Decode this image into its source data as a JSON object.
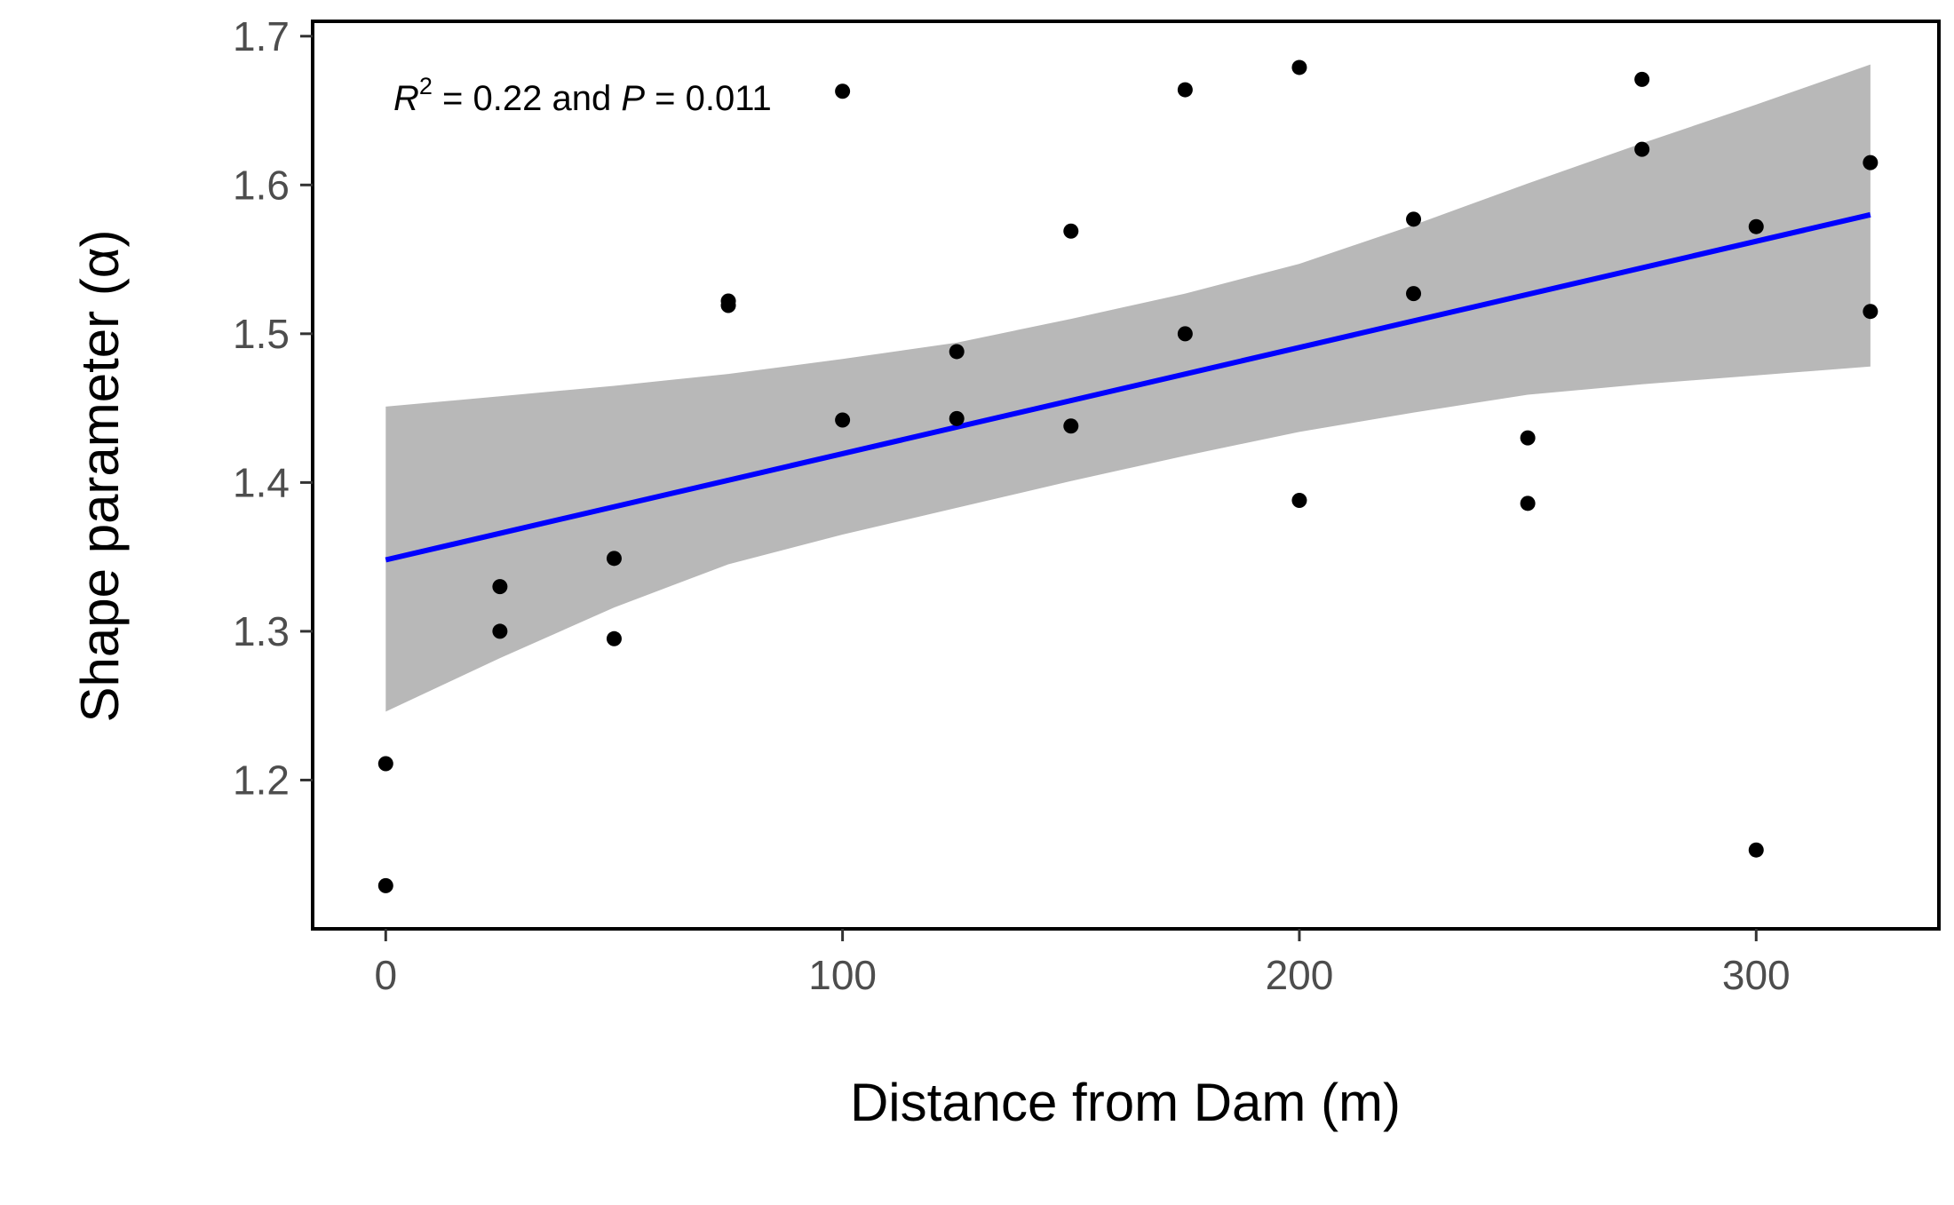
{
  "chart_data": {
    "type": "scatter",
    "xlabel": "Distance from Dam (m)",
    "ylabel": "Shape parameter (α)",
    "xlim": [
      -16,
      340
    ],
    "ylim": [
      1.1,
      1.71
    ],
    "x_ticks": [
      0,
      100,
      200,
      300
    ],
    "x_tick_labels": [
      "0",
      "100",
      "200",
      "300"
    ],
    "y_ticks": [
      1.2,
      1.3,
      1.4,
      1.5,
      1.6,
      1.7
    ],
    "y_tick_labels": [
      "1.2",
      "1.3",
      "1.4",
      "1.5",
      "1.6",
      "1.7"
    ],
    "grid": false,
    "annotation": {
      "r_symbol": "R",
      "r_exponent": "2",
      "r_value_text": " = 0.22 and ",
      "p_symbol": "P",
      "p_value_text": " = 0.011"
    },
    "points": [
      {
        "x": 0,
        "y": 1.211
      },
      {
        "x": 0,
        "y": 1.129
      },
      {
        "x": 25,
        "y": 1.33
      },
      {
        "x": 25,
        "y": 1.3
      },
      {
        "x": 50,
        "y": 1.349
      },
      {
        "x": 50,
        "y": 1.295
      },
      {
        "x": 75,
        "y": 1.522
      },
      {
        "x": 75,
        "y": 1.519
      },
      {
        "x": 100,
        "y": 1.663
      },
      {
        "x": 100,
        "y": 1.442
      },
      {
        "x": 125,
        "y": 1.488
      },
      {
        "x": 125,
        "y": 1.443
      },
      {
        "x": 150,
        "y": 1.569
      },
      {
        "x": 150,
        "y": 1.438
      },
      {
        "x": 175,
        "y": 1.664
      },
      {
        "x": 175,
        "y": 1.5
      },
      {
        "x": 200,
        "y": 1.679
      },
      {
        "x": 200,
        "y": 1.388
      },
      {
        "x": 225,
        "y": 1.577
      },
      {
        "x": 225,
        "y": 1.527
      },
      {
        "x": 250,
        "y": 1.43
      },
      {
        "x": 250,
        "y": 1.386
      },
      {
        "x": 275,
        "y": 1.671
      },
      {
        "x": 275,
        "y": 1.624
      },
      {
        "x": 300,
        "y": 1.572
      },
      {
        "x": 300,
        "y": 1.153
      },
      {
        "x": 325,
        "y": 1.615
      },
      {
        "x": 325,
        "y": 1.515
      }
    ],
    "fit_line": {
      "x": [
        0,
        325
      ],
      "y": [
        1.348,
        1.58
      ],
      "color": "#0000ff"
    },
    "confidence_band": {
      "color": "#b8b8b8",
      "x": [
        0,
        25,
        50,
        75,
        100,
        125,
        150,
        175,
        200,
        225,
        250,
        275,
        300,
        325
      ],
      "lower": [
        1.246,
        1.282,
        1.316,
        1.345,
        1.365,
        1.383,
        1.401,
        1.418,
        1.434,
        1.447,
        1.459,
        1.466,
        1.472,
        1.478
      ],
      "upper": [
        1.451,
        1.458,
        1.465,
        1.473,
        1.483,
        1.494,
        1.51,
        1.527,
        1.547,
        1.573,
        1.601,
        1.628,
        1.654,
        1.681
      ]
    },
    "point_color": "#000000"
  }
}
